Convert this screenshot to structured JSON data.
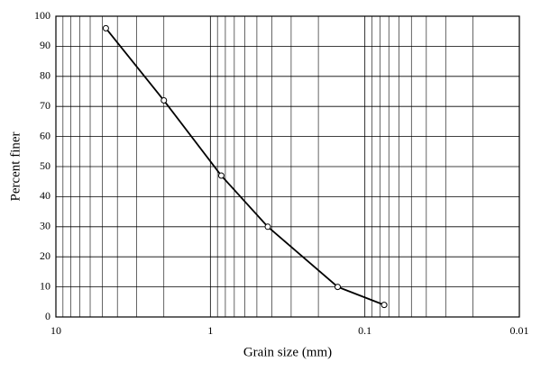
{
  "chart_data": {
    "type": "line",
    "x_label": "Grain size (mm)",
    "y_label": "Percent finer",
    "x": [
      4.75,
      2.0,
      0.85,
      0.425,
      0.15,
      0.075
    ],
    "series": [
      {
        "color": "#000000",
        "values": [
          96,
          72,
          47,
          30,
          10,
          4
        ]
      }
    ],
    "xlim": [
      10,
      0.01
    ],
    "xticks": [
      10,
      1,
      0.1,
      0.01
    ],
    "xminor": [
      9,
      8,
      7,
      6,
      5,
      4,
      3,
      2,
      0.9,
      0.8,
      0.7,
      0.6,
      0.5,
      0.4,
      0.3,
      0.2,
      0.09,
      0.08,
      0.07,
      0.06,
      0.05,
      0.04,
      0.03,
      0.02
    ],
    "x_log": true,
    "ylim": [
      0,
      100
    ],
    "yticks": [
      0,
      10,
      20,
      30,
      40,
      50,
      60,
      70,
      80,
      90,
      100
    ],
    "grid": true
  }
}
